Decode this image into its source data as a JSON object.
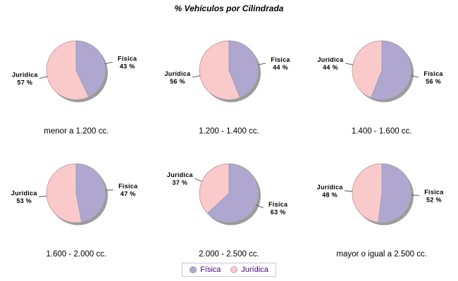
{
  "title": "% Vehículos por Cilindrada",
  "colors": {
    "fisica": "#b0a7d1",
    "juridica": "#fac9c9",
    "shadow": "#9c9c9c",
    "slice_stroke": "#999999",
    "callout_line": "#555555",
    "text": "#000000",
    "legend_text": "#4b0082",
    "legend_border": "#c9c9da",
    "background": "#ffffff"
  },
  "legend": {
    "items": [
      {
        "label": "Física",
        "color": "#b0a7d1"
      },
      {
        "label": "Jurídica",
        "color": "#fac9c9"
      }
    ]
  },
  "chart_data": [
    {
      "type": "pie",
      "title": "menor a 1.200 cc.",
      "labels": [
        "Física",
        "Jurídica"
      ],
      "values": [
        43,
        57
      ],
      "unit": "%"
    },
    {
      "type": "pie",
      "title": "1.200 - 1.400 cc.",
      "labels": [
        "Física",
        "Jurídica"
      ],
      "values": [
        44,
        56
      ],
      "unit": "%"
    },
    {
      "type": "pie",
      "title": "1.400 - 1.600 cc.",
      "labels": [
        "Física",
        "Jurídica"
      ],
      "values": [
        56,
        44
      ],
      "unit": "%"
    },
    {
      "type": "pie",
      "title": "1.600 - 2.000 cc.",
      "labels": [
        "Física",
        "Jurídica"
      ],
      "values": [
        47,
        53
      ],
      "unit": "%"
    },
    {
      "type": "pie",
      "title": "2.000 - 2.500 cc.",
      "labels": [
        "Física",
        "Jurídica"
      ],
      "values": [
        63,
        37
      ],
      "unit": "%"
    },
    {
      "type": "pie",
      "title": "mayor o igual a 2.500 cc.",
      "labels": [
        "Física",
        "Jurídica"
      ],
      "values": [
        52,
        48
      ],
      "unit": "%"
    }
  ]
}
